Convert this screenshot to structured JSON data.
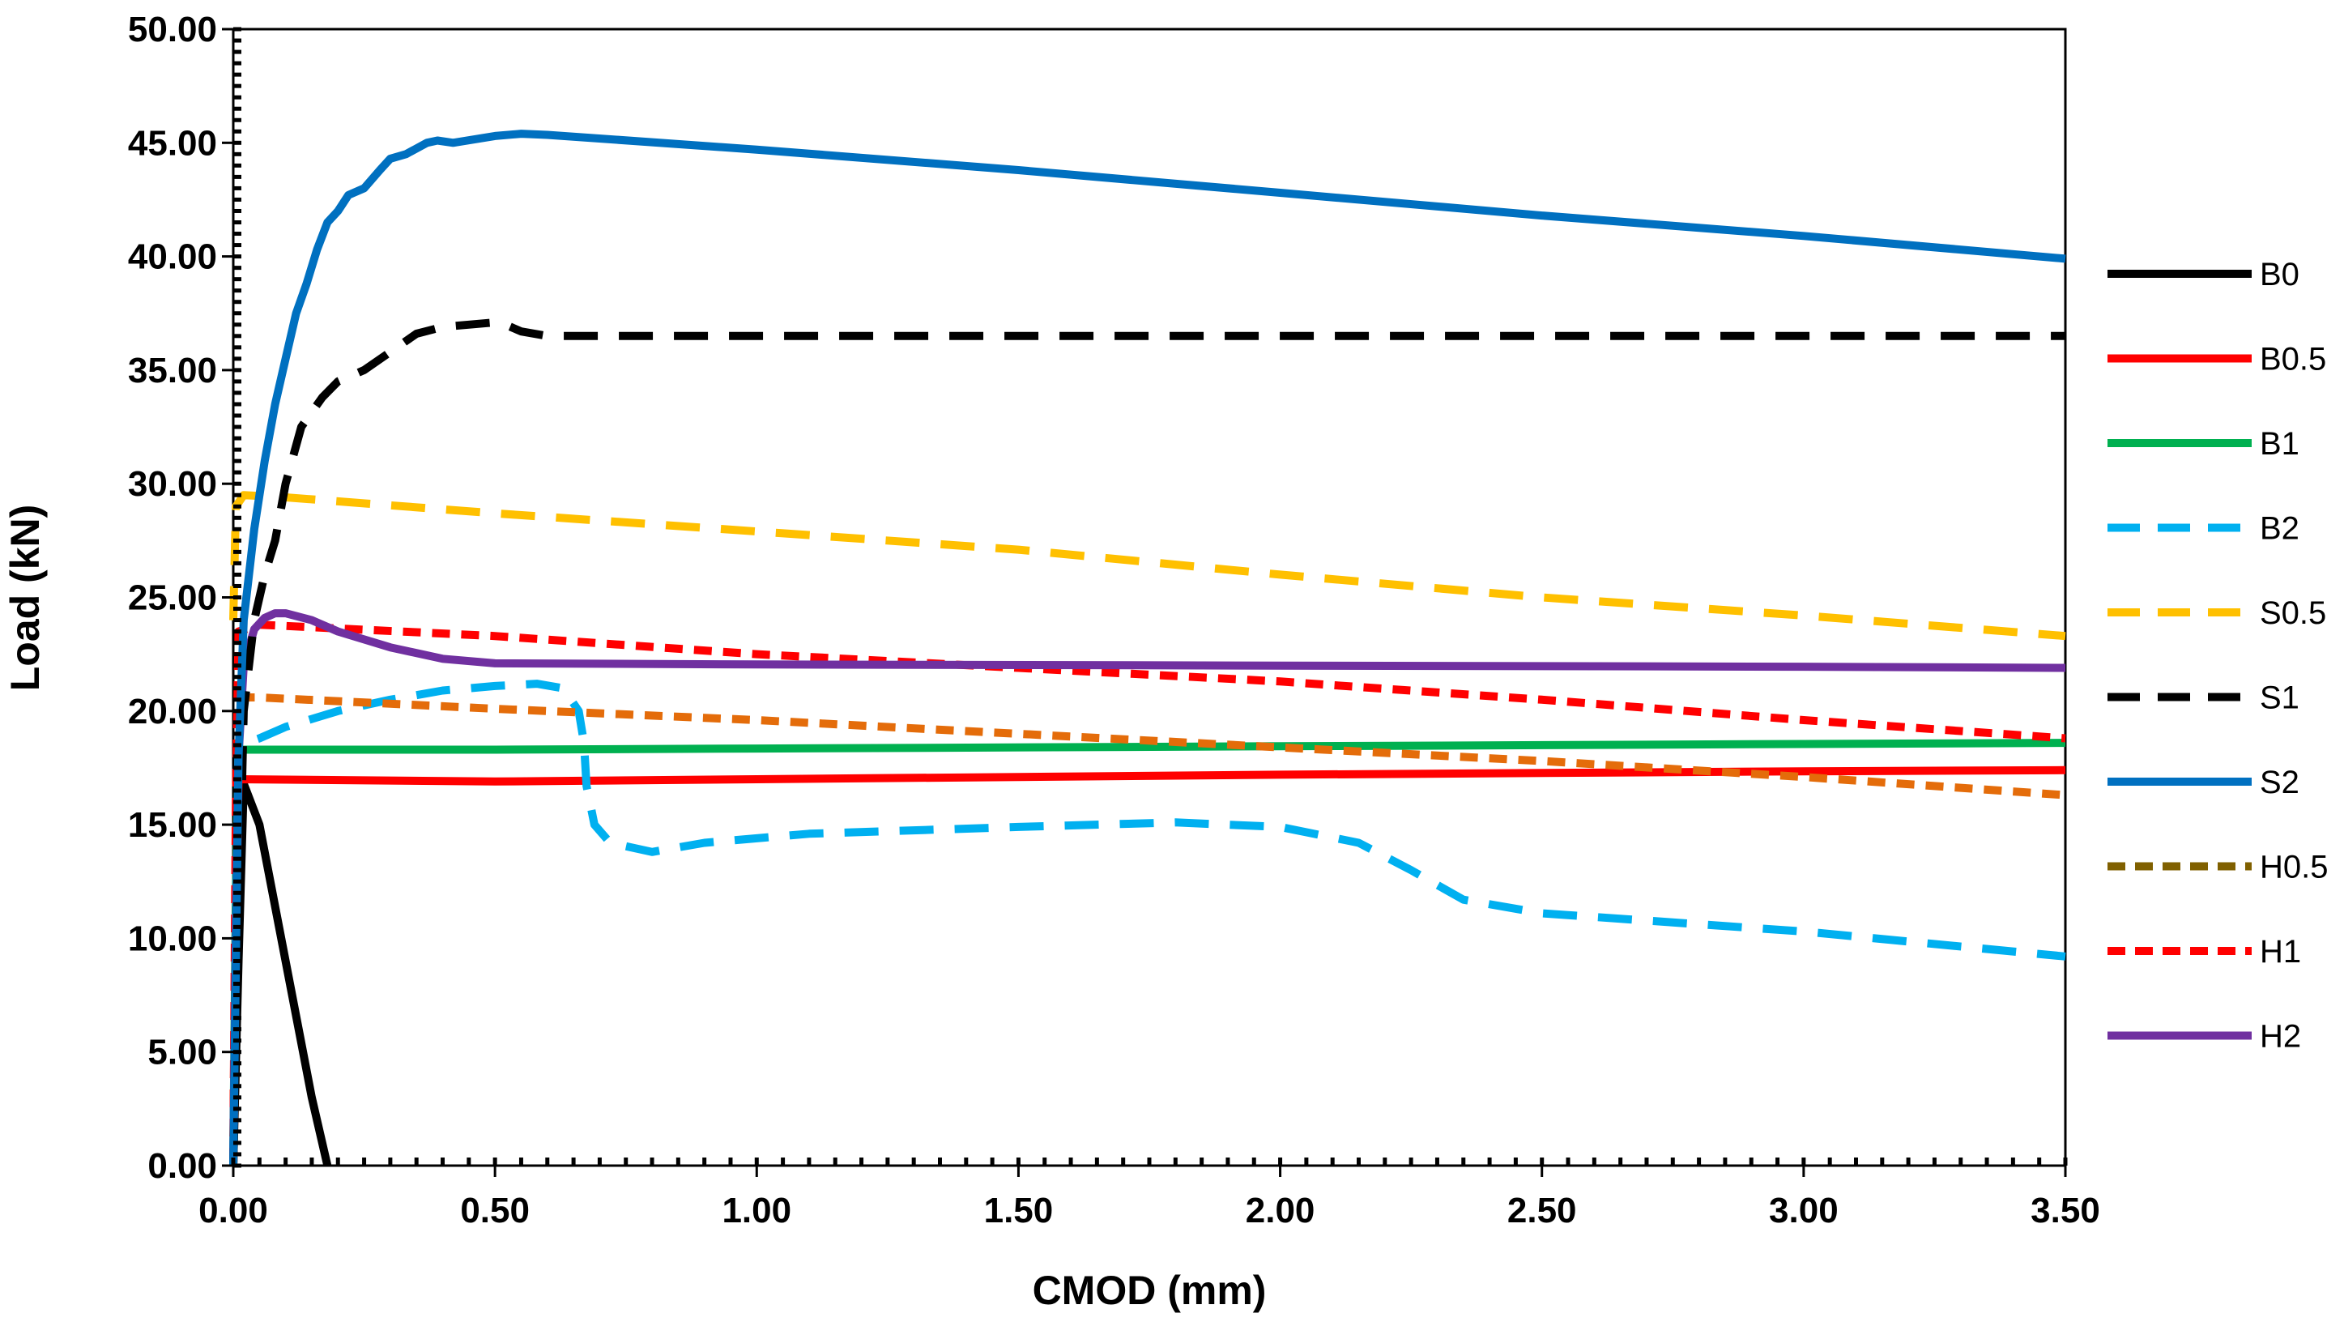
{
  "chart_data": {
    "type": "line",
    "title": "",
    "xlabel": "CMOD (mm)",
    "ylabel": "Load (kN)",
    "xlim": [
      0,
      3.5
    ],
    "ylim": [
      0,
      50
    ],
    "x_ticks": [
      "0.00",
      "0.50",
      "1.00",
      "1.50",
      "2.00",
      "2.50",
      "3.00",
      "3.50"
    ],
    "y_ticks": [
      "0.00",
      "5.00",
      "10.00",
      "15.00",
      "20.00",
      "25.00",
      "30.00",
      "35.00",
      "40.00",
      "45.00",
      "50.00"
    ],
    "grid": false,
    "legend_position": "right",
    "series": [
      {
        "name": "B0",
        "color": "#000000",
        "dash": "solid",
        "points": [
          [
            0,
            0
          ],
          [
            0.01,
            9
          ],
          [
            0.02,
            16.8
          ],
          [
            0.05,
            15
          ],
          [
            0.1,
            9
          ],
          [
            0.15,
            3
          ],
          [
            0.18,
            0
          ]
        ]
      },
      {
        "name": "B0.5",
        "color": "#FF0000",
        "dash": "solid",
        "points": [
          [
            0,
            0
          ],
          [
            0.005,
            10
          ],
          [
            0.01,
            17
          ],
          [
            0.5,
            16.9
          ],
          [
            1.0,
            17
          ],
          [
            2.0,
            17.2
          ],
          [
            3.0,
            17.35
          ],
          [
            3.5,
            17.4
          ]
        ]
      },
      {
        "name": "B1",
        "color": "#00B050",
        "dash": "solid",
        "points": [
          [
            0,
            0
          ],
          [
            0.005,
            12
          ],
          [
            0.01,
            18.3
          ],
          [
            0.5,
            18.3
          ],
          [
            1.0,
            18.35
          ],
          [
            2.0,
            18.45
          ],
          [
            3.0,
            18.55
          ],
          [
            3.5,
            18.6
          ]
        ]
      },
      {
        "name": "B2",
        "color": "#00B0F0",
        "dash": "longdash",
        "points": [
          [
            0,
            0
          ],
          [
            0.01,
            18.5
          ],
          [
            0.05,
            18.8
          ],
          [
            0.1,
            19.3
          ],
          [
            0.2,
            20
          ],
          [
            0.3,
            20.5
          ],
          [
            0.4,
            20.9
          ],
          [
            0.5,
            21.1
          ],
          [
            0.58,
            21.2
          ],
          [
            0.63,
            21
          ],
          [
            0.66,
            20
          ],
          [
            0.67,
            18.6
          ],
          [
            0.675,
            16.7
          ],
          [
            0.69,
            15
          ],
          [
            0.72,
            14.2
          ],
          [
            0.8,
            13.8
          ],
          [
            0.9,
            14.2
          ],
          [
            1.1,
            14.6
          ],
          [
            1.5,
            14.9
          ],
          [
            1.8,
            15.1
          ],
          [
            2.0,
            14.9
          ],
          [
            2.15,
            14.2
          ],
          [
            2.25,
            13
          ],
          [
            2.35,
            11.7
          ],
          [
            2.5,
            11.1
          ],
          [
            3.0,
            10.3
          ],
          [
            3.5,
            9.2
          ]
        ]
      },
      {
        "name": "S0.5",
        "color": "#FFC000",
        "dash": "longdash",
        "points": [
          [
            0,
            24
          ],
          [
            0.005,
            29
          ],
          [
            0.02,
            29.5
          ],
          [
            0.1,
            29.4
          ],
          [
            0.5,
            28.7
          ],
          [
            1.0,
            27.9
          ],
          [
            1.5,
            27.1
          ],
          [
            2.0,
            26.0
          ],
          [
            2.5,
            25.0
          ],
          [
            3.0,
            24.2
          ],
          [
            3.5,
            23.3
          ]
        ]
      },
      {
        "name": "S1",
        "color": "#000000",
        "dash": "longdash",
        "points": [
          [
            0,
            0
          ],
          [
            0.02,
            20
          ],
          [
            0.04,
            24
          ],
          [
            0.06,
            26
          ],
          [
            0.08,
            27.5
          ],
          [
            0.1,
            30
          ],
          [
            0.13,
            32.5
          ],
          [
            0.17,
            33.8
          ],
          [
            0.2,
            34.5
          ],
          [
            0.25,
            35
          ],
          [
            0.3,
            35.8
          ],
          [
            0.35,
            36.6
          ],
          [
            0.4,
            36.9
          ],
          [
            0.45,
            37
          ],
          [
            0.5,
            37.1
          ],
          [
            0.52,
            37
          ],
          [
            0.55,
            36.7
          ],
          [
            0.6,
            36.5
          ],
          [
            1.0,
            36.5
          ],
          [
            2.0,
            36.5
          ],
          [
            3.0,
            36.5
          ],
          [
            3.5,
            36.5
          ]
        ]
      },
      {
        "name": "S2",
        "color": "#0070C0",
        "dash": "solid",
        "points": [
          [
            0,
            0
          ],
          [
            0.01,
            18
          ],
          [
            0.02,
            24
          ],
          [
            0.04,
            28
          ],
          [
            0.06,
            31
          ],
          [
            0.08,
            33.5
          ],
          [
            0.1,
            35.5
          ],
          [
            0.12,
            37.5
          ],
          [
            0.14,
            38.8
          ],
          [
            0.16,
            40.3
          ],
          [
            0.18,
            41.5
          ],
          [
            0.2,
            42
          ],
          [
            0.22,
            42.7
          ],
          [
            0.25,
            43
          ],
          [
            0.28,
            43.8
          ],
          [
            0.3,
            44.3
          ],
          [
            0.33,
            44.5
          ],
          [
            0.37,
            45
          ],
          [
            0.39,
            45.1
          ],
          [
            0.42,
            45
          ],
          [
            0.5,
            45.3
          ],
          [
            0.55,
            45.4
          ],
          [
            0.6,
            45.35
          ],
          [
            1.0,
            44.7
          ],
          [
            1.5,
            43.8
          ],
          [
            2.0,
            42.8
          ],
          [
            2.5,
            41.8
          ],
          [
            3.0,
            40.9
          ],
          [
            3.5,
            39.9
          ]
        ]
      },
      {
        "name": "H0.5",
        "color": "#806000",
        "dash": "dash",
        "points": []
      },
      {
        "name": "H1",
        "color": "#FF0000",
        "dash": "dash",
        "points": [
          [
            0,
            0
          ],
          [
            0.005,
            16
          ],
          [
            0.01,
            23.5
          ],
          [
            0.05,
            23.8
          ],
          [
            0.5,
            23.3
          ],
          [
            1.0,
            22.5
          ],
          [
            1.5,
            21.9
          ],
          [
            2.0,
            21.3
          ],
          [
            2.5,
            20.5
          ],
          [
            3.0,
            19.6
          ],
          [
            3.5,
            18.8
          ]
        ]
      },
      {
        "name": "H0.5 (dotted orange)",
        "color": "#E46C0A",
        "dash": "dash",
        "legend": false,
        "points": [
          [
            0,
            0
          ],
          [
            0.005,
            14
          ],
          [
            0.01,
            20.6
          ],
          [
            0.05,
            20.6
          ],
          [
            0.5,
            20.1
          ],
          [
            1.0,
            19.6
          ],
          [
            1.5,
            19.0
          ],
          [
            2.0,
            18.4
          ],
          [
            2.5,
            17.8
          ],
          [
            3.0,
            17.1
          ],
          [
            3.5,
            16.3
          ]
        ]
      },
      {
        "name": "H2",
        "color": "#7030A0",
        "dash": "solid",
        "points": [
          [
            0,
            0
          ],
          [
            0.005,
            10
          ],
          [
            0.01,
            18
          ],
          [
            0.02,
            22
          ],
          [
            0.04,
            23.6
          ],
          [
            0.06,
            24.1
          ],
          [
            0.08,
            24.3
          ],
          [
            0.1,
            24.3
          ],
          [
            0.15,
            24
          ],
          [
            0.2,
            23.5
          ],
          [
            0.3,
            22.8
          ],
          [
            0.4,
            22.3
          ],
          [
            0.5,
            22.1
          ],
          [
            1.0,
            22.05
          ],
          [
            2.0,
            22.0
          ],
          [
            3.0,
            21.95
          ],
          [
            3.5,
            21.9
          ]
        ]
      }
    ]
  }
}
